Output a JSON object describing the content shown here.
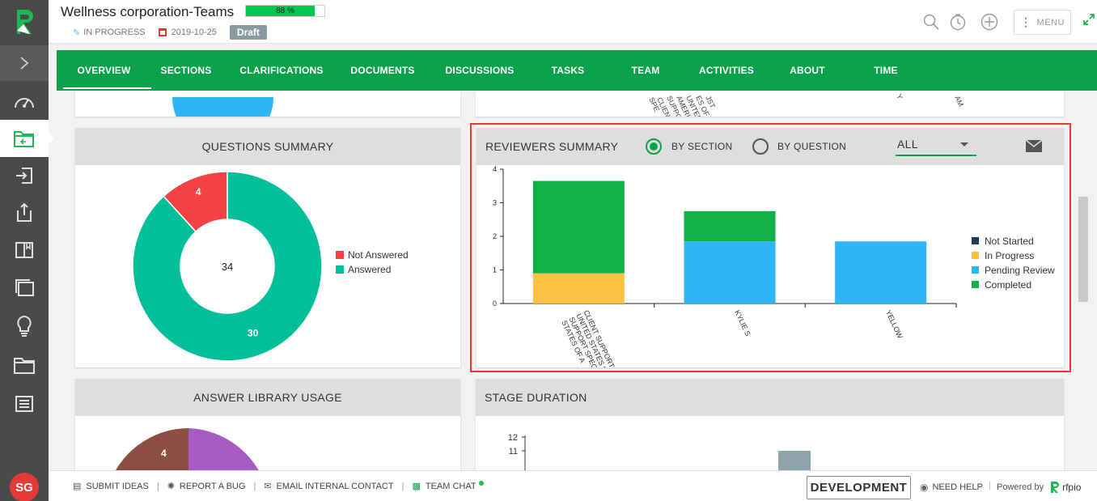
{
  "header": {
    "title": "Wellness corporation-Teams",
    "progress_text": "88 %",
    "progress_value": 88,
    "status": "IN PROGRESS",
    "date": "2019-10-25",
    "badge": "Draft",
    "menu_label": "MENU",
    "icons": [
      "search-icon",
      "timer-icon",
      "add-icon",
      "more-icon",
      "expand-icon"
    ]
  },
  "sidebar": {
    "avatar_initials": "SG",
    "items": [
      "dashboard-icon",
      "projects-icon",
      "import-icon",
      "export-icon",
      "library-icon",
      "content-icon",
      "ideas-icon",
      "folder-icon",
      "reports-icon"
    ]
  },
  "nav": {
    "tabs": [
      "OVERVIEW",
      "SECTIONS",
      "CLARIFICATIONS",
      "DOCUMENTS",
      "DISCUSSIONS",
      "TASKS",
      "TEAM",
      "ACTIVITIES",
      "ABOUT",
      "TIME"
    ],
    "active": "OVERVIEW"
  },
  "questions_summary": {
    "title": "QUESTIONS SUMMARY",
    "center_label": "34",
    "legend": [
      {
        "label": "Not Answered",
        "color": "#f44242"
      },
      {
        "label": "Answered",
        "color": "#00bf9a"
      }
    ],
    "chart_data": {
      "type": "pie",
      "title": "QUESTIONS SUMMARY",
      "labels": [
        "Not Answered",
        "Answered"
      ],
      "values": [
        4,
        30
      ],
      "total": 34,
      "value_labels": [
        "4",
        "30"
      ]
    }
  },
  "reviewers_summary": {
    "title": "REVIEWERS SUMMARY",
    "radio_section": "BY SECTION",
    "radio_question": "BY QUESTION",
    "selected_radio": "BY SECTION",
    "filter_value": "ALL",
    "legend": [
      {
        "label": "Not Started",
        "color": "#1f3a4d"
      },
      {
        "label": "In Progress",
        "color": "#fcc140"
      },
      {
        "label": "Pending Review",
        "color": "#2fb6f6"
      },
      {
        "label": "Completed",
        "color": "#12b24b"
      }
    ],
    "chart_data": {
      "type": "bar",
      "stacked": true,
      "categories": [
        "CLIENT SUPPORT S UNITED STATES O SUPPORT SPEC STATES OF A",
        "KYLIE S",
        "YELLOW"
      ],
      "series": [
        {
          "name": "Not Started",
          "values": [
            0,
            0,
            0
          ]
        },
        {
          "name": "In Progress",
          "values": [
            0.9,
            0,
            0
          ]
        },
        {
          "name": "Pending Review",
          "values": [
            0,
            1.85,
            1.85
          ]
        },
        {
          "name": "Completed",
          "values": [
            2.75,
            0.9,
            0
          ]
        }
      ],
      "yticks": [
        "0",
        "1",
        "2",
        "3",
        "4"
      ],
      "ylim": [
        0,
        4
      ]
    }
  },
  "answer_library": {
    "title": "ANSWER LIBRARY USAGE",
    "visible_label": "4"
  },
  "stage_duration": {
    "title": "STAGE DURATION",
    "yticks": [
      "12",
      "11"
    ]
  },
  "top_remnant": {
    "labels": [
      "UNITED",
      "AMERICA",
      "SUPPORT",
      "CLIENT",
      "SPE",
      "ES OF",
      "JST",
      "AM",
      "Y"
    ]
  },
  "footer": {
    "submit_ideas": "SUBMIT IDEAS",
    "report_bug": "REPORT A BUG",
    "email_contact": "EMAIL INTERNAL CONTACT",
    "team_chat": "TEAM CHAT",
    "environment": "DEVELOPMENT",
    "need_help": "NEED HELP",
    "powered_by": "Powered by",
    "brand": "rfpio"
  }
}
